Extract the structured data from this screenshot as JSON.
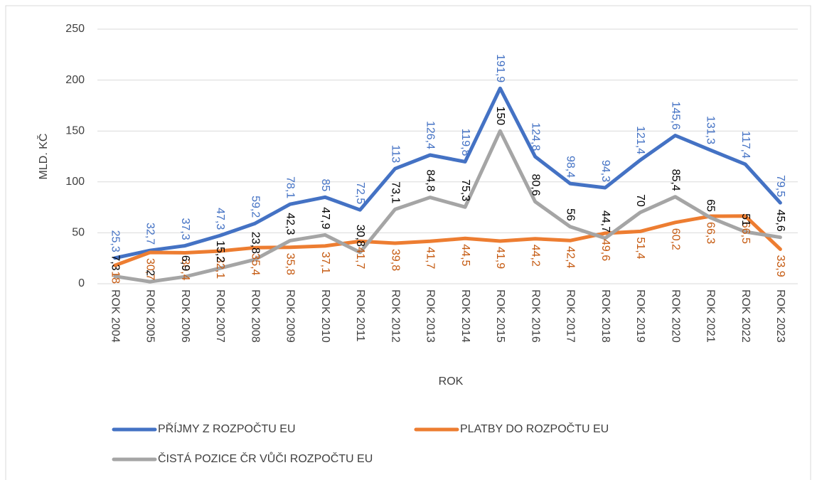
{
  "chart_data": {
    "type": "line",
    "y_label": "MLD. KČ",
    "x_label": "ROK",
    "categories": [
      "ROK 2004",
      "ROK 2005",
      "ROK 2006",
      "ROK 2007",
      "ROK 2008",
      "ROK 2009",
      "ROK 2010",
      "ROK 2011",
      "ROK 2012",
      "ROK 2013",
      "ROK 2014",
      "ROK 2015",
      "ROK 2016",
      "ROK 2017",
      "ROK 2018",
      "ROK 2019",
      "ROK 2020",
      "ROK 2021",
      "ROK 2022",
      "ROK 2023"
    ],
    "series": [
      {
        "name": "PŘÍJMY Z ROZPOČTU EU",
        "color": "#4472c4",
        "label_color": "#4472c4",
        "label_side": "above",
        "values": [
          25.3,
          32.7,
          37.3,
          47.3,
          59.2,
          78.1,
          85,
          72.5,
          113,
          126.4,
          119.8,
          191.9,
          124.8,
          98.4,
          94.3,
          121.4,
          145.6,
          131.3,
          117.4,
          79.5
        ],
        "value_labels": [
          "25,3",
          "32,7",
          "37,3",
          "47,3",
          "59,2",
          "78,1",
          "85",
          "72,5",
          "113",
          "126,4",
          "119,8",
          "191,9",
          "124,8",
          "98,4",
          "94,3",
          "121,4",
          "145,6",
          "131,3",
          "117,4",
          "79,5"
        ]
      },
      {
        "name": "PLATBY DO ROZPOČTU EU",
        "color": "#ed7d31",
        "label_color": "#c55a11",
        "label_side": "below",
        "values": [
          18,
          30.7,
          30.4,
          32.1,
          35.4,
          35.8,
          37.1,
          41.7,
          39.8,
          41.7,
          44.5,
          41.9,
          44.2,
          42.4,
          49.6,
          51.4,
          60.2,
          66.3,
          66.5,
          33.9
        ],
        "value_labels": [
          "18",
          "30,7",
          "30,4",
          "32,1",
          "35,4",
          "35,8",
          "37,1",
          "41,7",
          "39,8",
          "41,7",
          "44,5",
          "41,9",
          "44,2",
          "42,4",
          "49,6",
          "51,4",
          "60,2",
          "66,3",
          "66,5",
          "33,9"
        ]
      },
      {
        "name": "ČISTÁ POZICE ČR VŮČI ROZPOČTU EU",
        "color": "#a5a5a5",
        "label_color": "#000000",
        "label_side": "above",
        "values": [
          7.3,
          2,
          6.9,
          15.2,
          23.8,
          42.3,
          47.9,
          30.8,
          73.1,
          84.8,
          75.3,
          150,
          80.6,
          56,
          44.7,
          70,
          85.4,
          65,
          51,
          45.6
        ],
        "value_labels": [
          "7,3",
          "2",
          "6,9",
          "15,2",
          "23,8",
          "42,3",
          "47,9",
          "30,8",
          "73,1",
          "84,8",
          "75,3",
          "150",
          "80,6",
          "56",
          "44,7",
          "70",
          "85,4",
          "65",
          "51",
          "45,6"
        ]
      }
    ],
    "ylim": [
      0,
      250
    ],
    "yticks": [
      0,
      50,
      100,
      150,
      200,
      250
    ],
    "grid": true
  }
}
